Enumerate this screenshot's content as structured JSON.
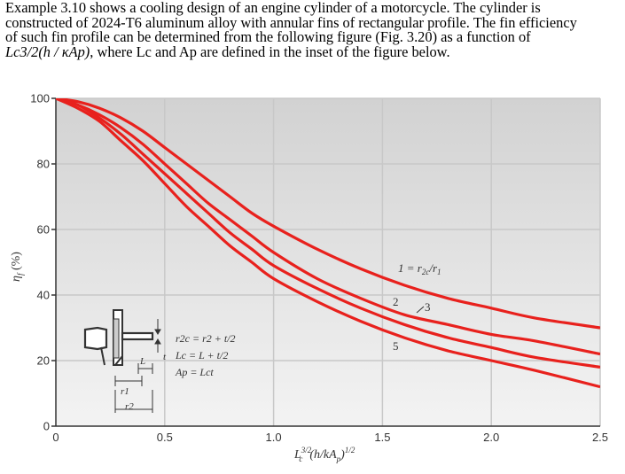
{
  "text": {
    "line1": "Example 3.10 shows a cooling design of an engine cylinder of a motorcycle.  The cylinder is",
    "line2": "constructed of 2024-T6 aluminum alloy with annular fins of rectangular profile. The fin efficiency",
    "line3": "of such fin profile can be determined from the following figure (Fig. 3.20) as a function of",
    "line4_formula": "Lc3/2(h / κAp)",
    "line4_rest": ", where Lc and Ap are defined in the inset of the figure below."
  },
  "inset": {
    "eq1": "r2c = r2 + t/2",
    "eq2": "Lc = L + t/2",
    "eq3": "Ap = Lct",
    "labels": [
      "t",
      "L",
      "r1",
      "r2"
    ]
  },
  "colors": {
    "curve": "#e8211d",
    "grid": "#c8c8c8",
    "axis": "#333333"
  },
  "chart_data": {
    "type": "line",
    "xlabel": "Lc3/2(h/kAp)1/2",
    "ylabel": "ηf (%)",
    "xlim": [
      0,
      2.5
    ],
    "ylim": [
      0,
      100
    ],
    "xticks": [
      "0",
      "0.5",
      "1.0",
      "1.5",
      "2.0",
      "2.5"
    ],
    "yticks": [
      "0",
      "20",
      "40",
      "60",
      "80",
      "100"
    ],
    "grid": true,
    "curve_labels": [
      "1 = r2c/r1",
      "2",
      "3",
      "5"
    ],
    "series": [
      {
        "name": "1",
        "x": [
          0,
          0.1,
          0.2,
          0.3,
          0.4,
          0.5,
          0.6,
          0.7,
          0.8,
          0.9,
          1.0,
          1.2,
          1.4,
          1.6,
          1.8,
          2.0,
          2.2,
          2.5
        ],
        "y": [
          100,
          99,
          97,
          94,
          90,
          85,
          80,
          75,
          70,
          65,
          61,
          54,
          48,
          43,
          39,
          36,
          33,
          30
        ]
      },
      {
        "name": "2",
        "x": [
          0,
          0.1,
          0.2,
          0.3,
          0.4,
          0.5,
          0.6,
          0.7,
          0.8,
          0.9,
          1.0,
          1.2,
          1.4,
          1.6,
          1.8,
          2.0,
          2.2,
          2.5
        ],
        "y": [
          100,
          98,
          95,
          91,
          86,
          80,
          74,
          68,
          63,
          58,
          53,
          45,
          39,
          34,
          31,
          28,
          26,
          22
        ]
      },
      {
        "name": "3",
        "x": [
          0,
          0.1,
          0.2,
          0.3,
          0.4,
          0.5,
          0.6,
          0.7,
          0.8,
          0.9,
          1.0,
          1.2,
          1.4,
          1.6,
          1.8,
          2.0,
          2.2,
          2.5
        ],
        "y": [
          100,
          98,
          94,
          89,
          83,
          77,
          71,
          65,
          59,
          54,
          49,
          42,
          36,
          31,
          27,
          24,
          21,
          18
        ]
      },
      {
        "name": "5",
        "x": [
          0,
          0.1,
          0.2,
          0.3,
          0.4,
          0.5,
          0.6,
          0.7,
          0.8,
          0.9,
          1.0,
          1.2,
          1.4,
          1.6,
          1.8,
          2.0,
          2.2,
          2.5
        ],
        "y": [
          100,
          97,
          93,
          87,
          81,
          74,
          67,
          61,
          55,
          50,
          45,
          38,
          32,
          27,
          23,
          20,
          17,
          12
        ]
      }
    ]
  }
}
